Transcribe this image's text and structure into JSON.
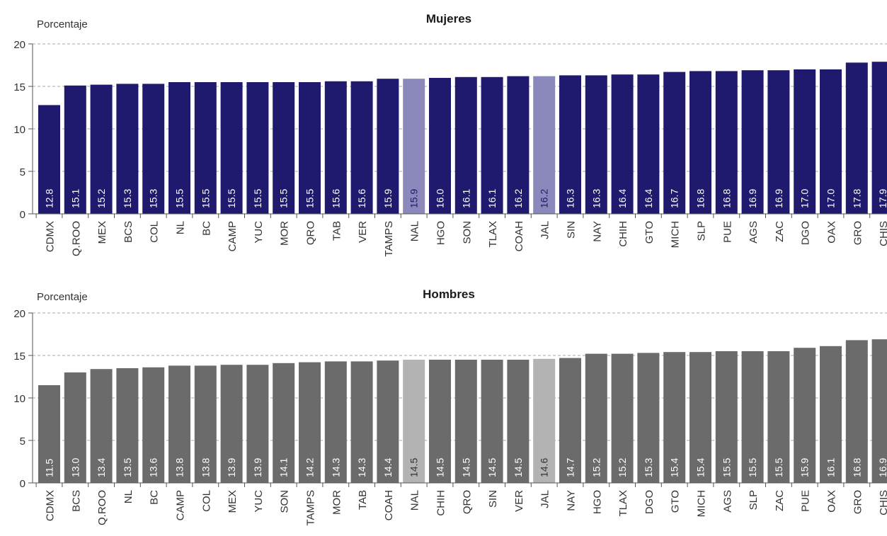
{
  "chart_data": [
    {
      "type": "bar",
      "title": "Mujeres",
      "ylabel": "Porcentaje",
      "ylim": [
        0,
        20
      ],
      "yticks": [
        0,
        5,
        10,
        15,
        20
      ],
      "grid": true,
      "categories": [
        "CDMX",
        "Q.ROO",
        "MEX",
        "BCS",
        "COL",
        "NL",
        "BC",
        "CAMP",
        "YUC",
        "MOR",
        "QRO",
        "TAB",
        "VER",
        "TAMPS",
        "NAL",
        "HGO",
        "SON",
        "TLAX",
        "COAH",
        "JAL",
        "SIN",
        "NAY",
        "CHIH",
        "GTO",
        "MICH",
        "SLP",
        "PUE",
        "AGS",
        "ZAC",
        "DGO",
        "OAX",
        "GRO",
        "CHIS"
      ],
      "values": [
        12.8,
        15.1,
        15.2,
        15.3,
        15.3,
        15.5,
        15.5,
        15.5,
        15.5,
        15.5,
        15.5,
        15.6,
        15.6,
        15.9,
        15.9,
        16.0,
        16.1,
        16.1,
        16.2,
        16.2,
        16.3,
        16.3,
        16.4,
        16.4,
        16.7,
        16.8,
        16.8,
        16.9,
        16.9,
        17.0,
        17.0,
        17.8,
        17.9
      ],
      "labels": [
        "12.8",
        "15.1",
        "15.2",
        "15.3",
        "15.3",
        "15.5",
        "15.5",
        "15.5",
        "15.5",
        "15.5",
        "15.5",
        "15.6",
        "15.6",
        "15.9",
        "15.9",
        "16.0",
        "16.1",
        "16.1",
        "16.2",
        "16.2",
        "16.3",
        "16.3",
        "16.4",
        "16.4",
        "16.7",
        "16.8",
        "16.8",
        "16.9",
        "16.9",
        "17.0",
        "17.0",
        "17.8",
        "17.9"
      ],
      "highlighted": [
        "NAL",
        "JAL"
      ],
      "colors": {
        "bar": "#1f1a6e",
        "highlight": "#8b88bb",
        "label": "#ffffff",
        "highlight_label": "#1f1a6e"
      }
    },
    {
      "type": "bar",
      "title": "Hombres",
      "ylabel": "Porcentaje",
      "ylim": [
        0,
        20
      ],
      "yticks": [
        0,
        5,
        10,
        15,
        20
      ],
      "grid": true,
      "categories": [
        "CDMX",
        "BCS",
        "Q.ROO",
        "NL",
        "BC",
        "CAMP",
        "COL",
        "MEX",
        "YUC",
        "SON",
        "TAMPS",
        "MOR",
        "TAB",
        "COAH",
        "NAL",
        "CHIH",
        "QRO",
        "SIN",
        "VER",
        "JAL",
        "NAY",
        "HGO",
        "TLAX",
        "DGO",
        "GTO",
        "MICH",
        "AGS",
        "SLP",
        "ZAC",
        "PUE",
        "OAX",
        "GRO",
        "CHIS"
      ],
      "values": [
        11.5,
        13.0,
        13.4,
        13.5,
        13.6,
        13.8,
        13.8,
        13.9,
        13.9,
        14.1,
        14.2,
        14.3,
        14.3,
        14.4,
        14.5,
        14.5,
        14.5,
        14.5,
        14.5,
        14.6,
        14.7,
        15.2,
        15.2,
        15.3,
        15.4,
        15.4,
        15.5,
        15.5,
        15.5,
        15.9,
        16.1,
        16.8,
        16.9
      ],
      "labels": [
        "11.5",
        "13.0",
        "13.4",
        "13.5",
        "13.6",
        "13.8",
        "13.8",
        "13.9",
        "13.9",
        "14.1",
        "14.2",
        "14.3",
        "14.3",
        "14.4",
        "14.5",
        "14.5",
        "14.5",
        "14.5",
        "14.5",
        "14.6",
        "14.7",
        "15.2",
        "15.2",
        "15.3",
        "15.4",
        "15.4",
        "15.5",
        "15.5",
        "15.5",
        "15.9",
        "16.1",
        "16.8",
        "16.9"
      ],
      "highlighted": [
        "NAL",
        "JAL"
      ],
      "colors": {
        "bar": "#6b6b6b",
        "highlight": "#b3b3b3",
        "label": "#ffffff",
        "highlight_label": "#333333"
      }
    }
  ]
}
